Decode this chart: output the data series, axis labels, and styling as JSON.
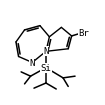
{
  "bg_color": "#ffffff",
  "line_color": "#000000",
  "lw": 1.1,
  "font_size": 6.5
}
